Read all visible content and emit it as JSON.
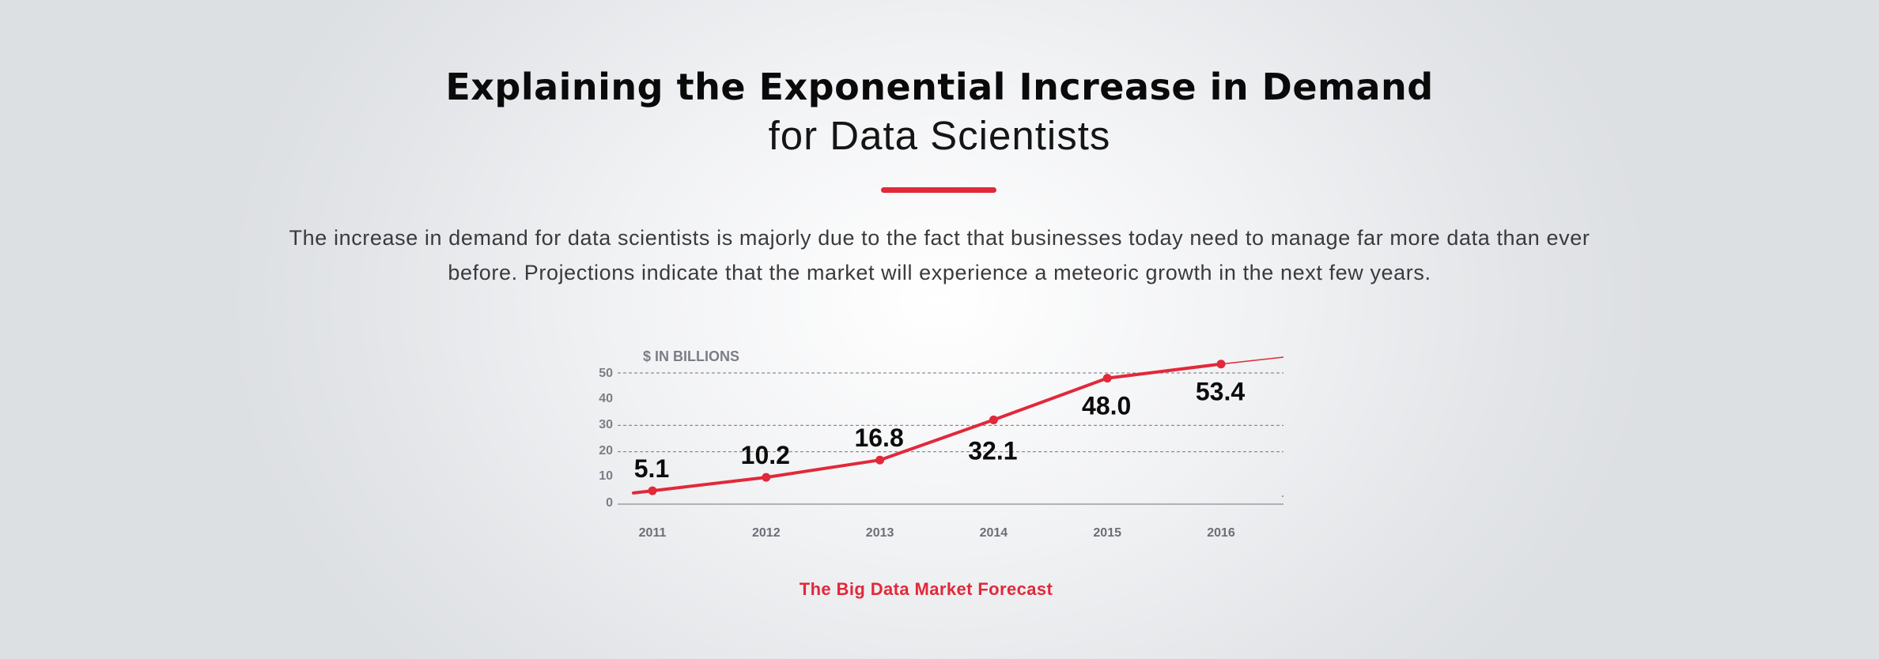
{
  "header": {
    "title_line1": "Explaining the Exponential Increase in Demand",
    "title_line2": "for Data Scientists",
    "intro": "The increase in demand for data scientists is majorly due to the fact that businesses today need to manage far more data than ever before. Projections indicate that the market will experience a meteoric growth in the next few years.",
    "accent_color": "#e1293a"
  },
  "chart_data": {
    "type": "line",
    "title": "The Big Data Market Forecast",
    "ylabel": "$ IN BILLIONS",
    "xlabel": "",
    "categories": [
      "2011",
      "2012",
      "2013",
      "2014",
      "2015",
      "2016"
    ],
    "values": [
      5.1,
      10.2,
      16.8,
      32.1,
      48.0,
      53.4
    ],
    "data_labels": [
      "5.1",
      "10.2",
      "16.8",
      "32.1",
      "48.0",
      "53.4"
    ],
    "yticks": [
      "0",
      "10",
      "20",
      "30",
      "40",
      "50"
    ],
    "ylim": [
      0,
      50
    ],
    "gridlines": "dashed at 20, 30 and 50",
    "line_color": "#e1293a",
    "legend": "none"
  }
}
